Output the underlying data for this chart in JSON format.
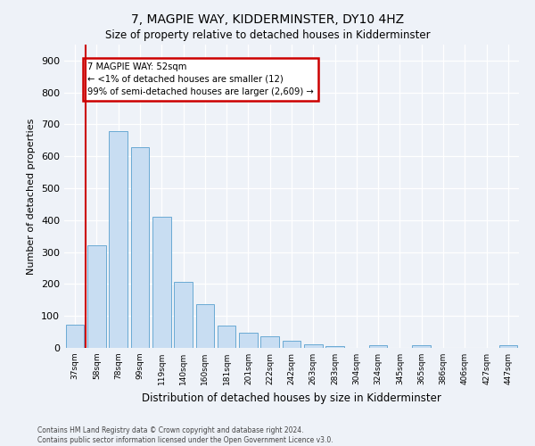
{
  "title": "7, MAGPIE WAY, KIDDERMINSTER, DY10 4HZ",
  "subtitle": "Size of property relative to detached houses in Kidderminster",
  "xlabel": "Distribution of detached houses by size in Kidderminster",
  "ylabel": "Number of detached properties",
  "bar_labels": [
    "37sqm",
    "58sqm",
    "78sqm",
    "99sqm",
    "119sqm",
    "140sqm",
    "160sqm",
    "181sqm",
    "201sqm",
    "222sqm",
    "242sqm",
    "263sqm",
    "283sqm",
    "304sqm",
    "324sqm",
    "345sqm",
    "365sqm",
    "386sqm",
    "406sqm",
    "427sqm",
    "447sqm"
  ],
  "bar_values": [
    72,
    320,
    680,
    630,
    410,
    207,
    138,
    70,
    48,
    35,
    22,
    12,
    5,
    0,
    8,
    0,
    8,
    0,
    0,
    0,
    8
  ],
  "bar_color": "#c8ddf2",
  "bar_edge_color": "#6aaad4",
  "vline_color": "#cc0000",
  "annotation_title": "7 MAGPIE WAY: 52sqm",
  "annotation_line1": "← <1% of detached houses are smaller (12)",
  "annotation_line2": "99% of semi-detached houses are larger (2,609) →",
  "annotation_box_color": "#cc0000",
  "ylim": [
    0,
    950
  ],
  "yticks": [
    0,
    100,
    200,
    300,
    400,
    500,
    600,
    700,
    800,
    900
  ],
  "footer1": "Contains HM Land Registry data © Crown copyright and database right 2024.",
  "footer2": "Contains public sector information licensed under the Open Government Licence v3.0.",
  "bg_color": "#eef2f8",
  "plot_bg_color": "#eef2f8"
}
